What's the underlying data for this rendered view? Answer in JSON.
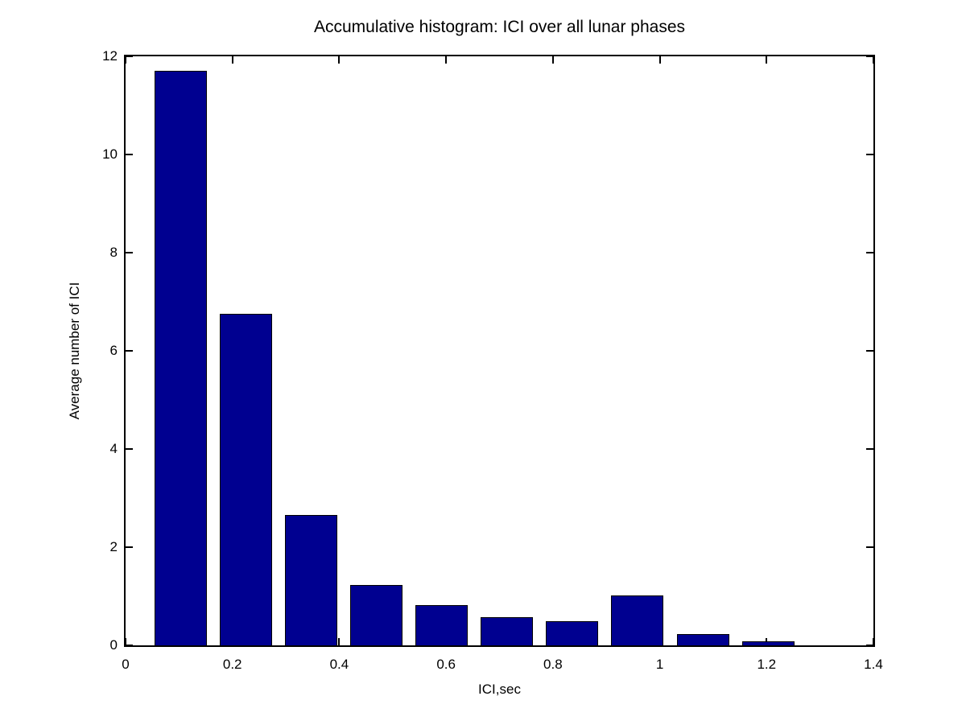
{
  "figure": {
    "background_color": "#ffffff",
    "axis_color": "#000000",
    "bar_fill_color": "#000090",
    "bar_edge_color": "#000000"
  },
  "chart_data": {
    "type": "bar",
    "title": "Accumulative histogram: ICI over all lunar phases",
    "xlabel": "ICI,sec",
    "ylabel": "Average number of ICI",
    "x": [
      0.103,
      0.225,
      0.347,
      0.469,
      0.592,
      0.714,
      0.836,
      0.958,
      1.081,
      1.203
    ],
    "values": [
      11.7,
      6.75,
      2.65,
      1.23,
      0.82,
      0.57,
      0.49,
      1.01,
      0.23,
      0.08
    ],
    "bar_width": 0.098,
    "xlim": [
      0,
      1.4
    ],
    "ylim": [
      0,
      12
    ],
    "xticks": [
      0,
      0.2,
      0.4,
      0.6,
      0.8,
      1.0,
      1.2,
      1.4
    ],
    "xtick_labels": [
      "0",
      "0.2",
      "0.4",
      "0.6",
      "0.8",
      "1",
      "1.2",
      "1.4"
    ],
    "yticks": [
      0,
      2,
      4,
      6,
      8,
      10,
      12
    ],
    "ytick_labels": [
      "0",
      "2",
      "4",
      "6",
      "8",
      "10",
      "12"
    ],
    "grid": false,
    "legend": null
  }
}
